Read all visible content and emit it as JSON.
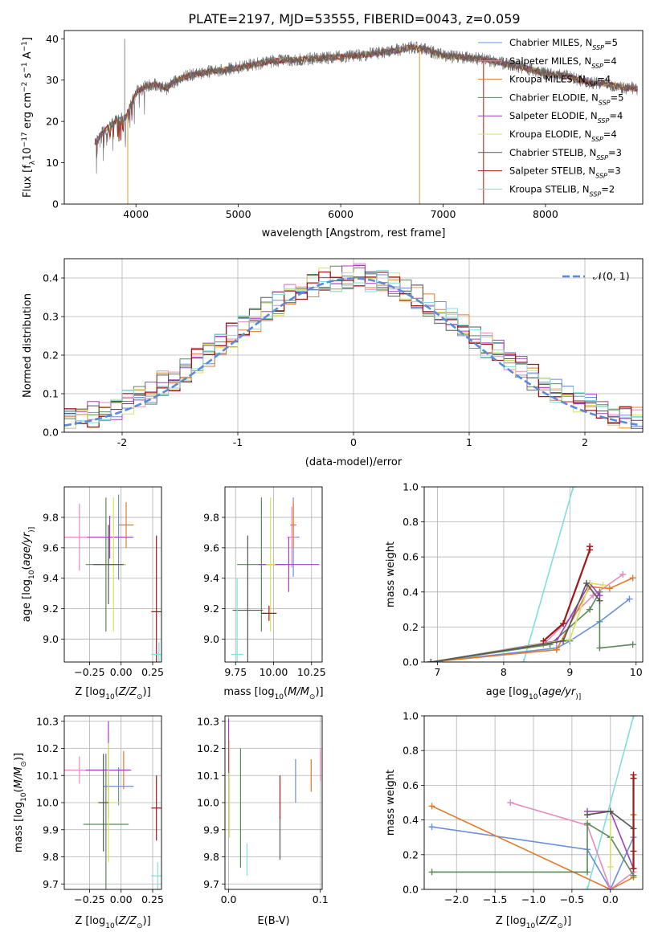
{
  "figure": {
    "title": "PLATE=2197, MJD=53555, FIBERID=0043, z=0.059"
  },
  "colors": {
    "Chabrier MILES": "#6a8fd8",
    "Salpeter MILES": "#e58ac0",
    "Kroupa MILES": "#e07b28",
    "Chabrier ELODIE": "#5a8a5a",
    "Salpeter ELODIE": "#a040c0",
    "Kroupa ELODIE": "#d8e060",
    "Chabrier STELIB": "#555555",
    "Salpeter STELIB": "#a01818",
    "Kroupa STELIB": "#80dede",
    "normal": "#5b8bd8"
  },
  "chart_data": [
    {
      "id": "spectrum",
      "type": "line",
      "xlabel": "wavelength [Angstrom, rest frame]",
      "ylabel": "Flux [f$_\\lambda$10$^{-17}$ erg cm$^{-2}$ s$^{-1}$ A$^{-1}$]",
      "ylabel_parts": [
        "Flux [f",
        "λ",
        "10",
        "−17",
        " erg cm",
        "−2",
        " s",
        "−1",
        " A",
        "−1",
        "]"
      ],
      "xlim": [
        3300,
        8950
      ],
      "ylim": [
        0,
        42
      ],
      "xticks": [
        4000,
        5000,
        6000,
        7000,
        8000
      ],
      "yticks": [
        0,
        10,
        20,
        30,
        40
      ],
      "x_range": [
        3600,
        8900
      ],
      "grid": false,
      "legend_position": "right",
      "legend": [
        {
          "model": "Chabrier MILES",
          "n": "5"
        },
        {
          "model": "Salpeter MILES",
          "n": "4"
        },
        {
          "model": "Kroupa MILES",
          "n": "4"
        },
        {
          "model": "Chabrier ELODIE",
          "n": "5"
        },
        {
          "model": "Salpeter ELODIE",
          "n": "4"
        },
        {
          "model": "Kroupa ELODIE",
          "n": "4"
        },
        {
          "model": "Chabrier STELIB",
          "n": "3"
        },
        {
          "model": "Salpeter STELIB",
          "n": "3"
        },
        {
          "model": "Kroupa STELIB",
          "n": "2"
        }
      ],
      "continuum": {
        "x": [
          3600,
          3700,
          3800,
          3900,
          4000,
          4100,
          4200,
          4300,
          4400,
          4500,
          4700,
          5000,
          5300,
          5600,
          5900,
          6200,
          6500,
          6700,
          6800,
          7000,
          7200,
          7400,
          7600,
          7800,
          8000,
          8200,
          8400,
          8600,
          8800
        ],
        "y": [
          15,
          18,
          20,
          21,
          27,
          28.5,
          29,
          28,
          30,
          31,
          32,
          33,
          34.5,
          35,
          35.5,
          36,
          37,
          38,
          37.5,
          36,
          35.5,
          35,
          34,
          33,
          31.5,
          31,
          29.5,
          29,
          28
        ]
      },
      "spikes": [
        {
          "x": 3890,
          "y": 40
        },
        {
          "x": 3920,
          "y": 0
        },
        {
          "x": 6770,
          "y": 0
        },
        {
          "x": 7395,
          "y": 0
        }
      ]
    },
    {
      "id": "residuals",
      "type": "step",
      "xlabel": "(data-model)/error",
      "ylabel": "Normed distribution",
      "xlim": [
        -2.5,
        2.5
      ],
      "ylim": [
        0,
        0.45
      ],
      "xticks": [
        -2,
        -1,
        0,
        1,
        2
      ],
      "yticks": [
        0.0,
        0.1,
        0.2,
        0.3,
        0.4
      ],
      "grid": true,
      "legend_position": "top-right",
      "legend_label": "𝒩(0, 1)",
      "normal_curve": {
        "mean": 0,
        "sigma": 1
      }
    },
    {
      "id": "age-vs-Z",
      "type": "errorbar",
      "xlabel_parts": [
        "Z [log",
        "10",
        "(",
        "Z/Z",
        "⊙",
        ")]"
      ],
      "ylabel_parts": [
        "age  [log",
        "10",
        "(",
        "age/yr",
        ")]"
      ],
      "xlim": [
        -0.45,
        0.32
      ],
      "ylim": [
        8.85,
        10.0
      ],
      "xticks": [
        -0.25,
        0.0,
        0.25
      ],
      "xticklabels": [
        "−0.25",
        "0.00",
        "0.25"
      ],
      "yticks": [
        9.0,
        9.2,
        9.4,
        9.6,
        9.8
      ],
      "grid": true,
      "points": [
        {
          "model": "Chabrier MILES",
          "x": -0.02,
          "y": 9.67,
          "xerr": 0.12,
          "yerr": 0.28
        },
        {
          "model": "Salpeter MILES",
          "x": -0.33,
          "y": 9.67,
          "xerr": 0.22,
          "yerr": 0.22
        },
        {
          "model": "Kroupa MILES",
          "x": 0.04,
          "y": 9.75,
          "xerr": 0.06,
          "yerr": 0.15
        },
        {
          "model": "Chabrier ELODIE",
          "x": -0.12,
          "y": 9.49,
          "xerr": 0.16,
          "yerr": 0.44
        },
        {
          "model": "Salpeter ELODIE",
          "x": -0.09,
          "y": 9.67,
          "xerr": 0.18,
          "yerr": 0.14
        },
        {
          "model": "Kroupa ELODIE",
          "x": -0.06,
          "y": 9.49,
          "xerr": 0.1,
          "yerr": 0.44
        },
        {
          "model": "Chabrier STELIB",
          "x": -0.1,
          "y": 9.49,
          "xerr": 0.12,
          "yerr": 0.26
        },
        {
          "model": "Salpeter STELIB",
          "x": 0.28,
          "y": 9.18,
          "xerr": 0.04,
          "yerr": 0.5
        },
        {
          "model": "Kroupa STELIB",
          "x": 0.3,
          "y": 8.9,
          "xerr": 0.06,
          "yerr": 0.08
        }
      ]
    },
    {
      "id": "age-vs-mass",
      "type": "errorbar",
      "xlabel_parts": [
        "mass [log",
        "10",
        "(",
        "M/M",
        "⊙",
        ")]"
      ],
      "xlim": [
        9.68,
        10.32
      ],
      "ylim": [
        8.85,
        10.0
      ],
      "xticks": [
        9.75,
        10.0,
        10.25
      ],
      "xticklabels": [
        "9.75",
        "10.00",
        "10.25"
      ],
      "yticks": [
        9.0,
        9.2,
        9.4,
        9.6,
        9.8
      ],
      "grid": true,
      "points": [
        {
          "model": "Chabrier MILES",
          "x": 10.13,
          "y": 9.67,
          "xerr": 0.04,
          "yerr": 0.26
        },
        {
          "model": "Salpeter MILES",
          "x": 10.12,
          "y": 9.67,
          "xerr": 0.03,
          "yerr": 0.2
        },
        {
          "model": "Kroupa MILES",
          "x": 10.13,
          "y": 9.75,
          "xerr": 0.02,
          "yerr": 0.15
        },
        {
          "model": "Chabrier ELODIE",
          "x": 9.92,
          "y": 9.49,
          "xerr": 0.16,
          "yerr": 0.44
        },
        {
          "model": "Salpeter ELODIE",
          "x": 10.1,
          "y": 9.49,
          "xerr": 0.2,
          "yerr": 0.18
        },
        {
          "model": "Kroupa ELODIE",
          "x": 9.98,
          "y": 9.49,
          "xerr": 0.03,
          "yerr": 0.44
        },
        {
          "model": "Chabrier STELIB",
          "x": 9.83,
          "y": 9.19,
          "xerr": 0.1,
          "yerr": 0.49
        },
        {
          "model": "Salpeter STELIB",
          "x": 9.97,
          "y": 9.17,
          "xerr": 0.05,
          "yerr": 0.05
        },
        {
          "model": "Kroupa STELIB",
          "x": 9.76,
          "y": 8.9,
          "xerr": 0.04,
          "yerr": 0.5
        }
      ]
    },
    {
      "id": "weight-vs-age",
      "type": "line",
      "xlabel_parts": [
        "age  [log",
        "10",
        "(",
        "age/yr",
        ")]"
      ],
      "ylabel": "mass weight",
      "xlim": [
        6.8,
        10.1
      ],
      "ylim": [
        0,
        1.0
      ],
      "xticks": [
        7,
        8,
        9,
        10
      ],
      "yticks": [
        0.0,
        0.2,
        0.4,
        0.6,
        0.8,
        1.0
      ],
      "grid": true,
      "series": [
        {
          "model": "Kroupa STELIB",
          "x": [
            8.3,
            9.05
          ],
          "y": [
            0.0,
            1.0
          ]
        },
        {
          "model": "Chabrier MILES",
          "x": [
            6.9,
            8.8,
            9.0,
            9.45,
            9.9
          ],
          "y": [
            0.0,
            0.08,
            0.12,
            0.23,
            0.36
          ]
        },
        {
          "model": "Salpeter MILES",
          "x": [
            6.9,
            8.6,
            9.35,
            9.8
          ],
          "y": [
            0.0,
            0.1,
            0.38,
            0.5
          ]
        },
        {
          "model": "Kroupa MILES",
          "x": [
            6.9,
            8.8,
            9.3,
            9.6,
            9.95
          ],
          "y": [
            0.0,
            0.07,
            0.43,
            0.42,
            0.48
          ]
        },
        {
          "model": "Chabrier ELODIE",
          "x": [
            6.9,
            8.7,
            9.3,
            9.45,
            9.45,
            9.95
          ],
          "y": [
            0.0,
            0.1,
            0.3,
            0.4,
            0.08,
            0.1
          ]
        },
        {
          "model": "Salpeter ELODIE",
          "x": [
            6.9,
            8.8,
            9.3,
            9.45
          ],
          "y": [
            0.0,
            0.12,
            0.45,
            0.38
          ]
        },
        {
          "model": "Kroupa ELODIE",
          "x": [
            6.9,
            9.0,
            9.3,
            9.5
          ],
          "y": [
            0.0,
            0.13,
            0.45,
            0.44
          ]
        },
        {
          "model": "Chabrier STELIB",
          "x": [
            6.9,
            8.9,
            9.25,
            9.45
          ],
          "y": [
            0.0,
            0.12,
            0.45,
            0.35
          ]
        },
        {
          "model": "Salpeter STELIB",
          "x": [
            8.6,
            8.9,
            9.3,
            9.3
          ],
          "y": [
            0.12,
            0.22,
            0.64,
            0.66
          ]
        }
      ]
    },
    {
      "id": "mass-vs-Z",
      "type": "errorbar",
      "xlabel_parts": [
        "Z [log",
        "10",
        "(",
        "Z/Z",
        "⊙",
        ")]"
      ],
      "ylabel_parts": [
        "mass [log",
        "10",
        "(",
        "M/M",
        "⊙",
        ")]"
      ],
      "xlim": [
        -0.45,
        0.32
      ],
      "ylim": [
        9.68,
        10.32
      ],
      "xticks": [
        -0.25,
        0.0,
        0.25
      ],
      "xticklabels": [
        "−0.25",
        "0.00",
        "0.25"
      ],
      "yticks": [
        9.7,
        9.8,
        9.9,
        10.0,
        10.1,
        10.2,
        10.3
      ],
      "grid": true,
      "points": [
        {
          "model": "Chabrier MILES",
          "x": -0.02,
          "y": 10.06,
          "xerr": 0.12,
          "yerr": 0.07
        },
        {
          "model": "Salpeter MILES",
          "x": -0.33,
          "y": 10.12,
          "xerr": 0.22,
          "yerr": 0.05
        },
        {
          "model": "Kroupa MILES",
          "x": 0.02,
          "y": 10.12,
          "xerr": 0.04,
          "yerr": 0.07
        },
        {
          "model": "Chabrier ELODIE",
          "x": -0.12,
          "y": 9.92,
          "xerr": 0.18,
          "yerr": 0.26
        },
        {
          "model": "Salpeter ELODIE",
          "x": -0.1,
          "y": 10.12,
          "xerr": 0.18,
          "yerr": 0.18
        },
        {
          "model": "Kroupa ELODIE",
          "x": -0.1,
          "y": 10.0,
          "xerr": 0.1,
          "yerr": 0.22
        },
        {
          "model": "Chabrier STELIB",
          "x": -0.14,
          "y": 10.0,
          "xerr": 0.04,
          "yerr": 0.18
        },
        {
          "model": "Salpeter STELIB",
          "x": 0.28,
          "y": 9.98,
          "xerr": 0.04,
          "yerr": 0.12
        },
        {
          "model": "Kroupa STELIB",
          "x": 0.29,
          "y": 9.73,
          "xerr": 0.05,
          "yerr": 0.05
        }
      ]
    },
    {
      "id": "mass-vs-EBV",
      "type": "errorbar",
      "xlabel": "E(B-V)",
      "xlim": [
        -0.004,
        0.102
      ],
      "ylim": [
        9.68,
        10.32
      ],
      "xticks": [
        0.0,
        0.1
      ],
      "xticklabels": [
        "0.0",
        "0.1"
      ],
      "yticks": [
        9.7,
        9.8,
        9.9,
        10.0,
        10.1,
        10.2,
        10.3
      ],
      "grid": true,
      "points": [
        {
          "model": "Salpeter ELODIE",
          "x": 0.0,
          "y": 10.21,
          "xerr": 0,
          "yerr": 0.1
        },
        {
          "model": "Kroupa ELODIE",
          "x": 0.001,
          "y": 10.05,
          "xerr": 0,
          "yerr": 0.18
        },
        {
          "model": "Chabrier ELODIE",
          "x": 0.013,
          "y": 9.98,
          "xerr": 0,
          "yerr": 0.22
        },
        {
          "model": "Kroupa STELIB",
          "x": 0.02,
          "y": 9.79,
          "xerr": 0,
          "yerr": 0.06
        },
        {
          "model": "Chabrier STELIB",
          "x": 0.056,
          "y": 9.87,
          "xerr": 0,
          "yerr": 0.08
        },
        {
          "model": "Salpeter STELIB",
          "x": 0.056,
          "y": 10.02,
          "xerr": 0,
          "yerr": 0.08
        },
        {
          "model": "Chabrier MILES",
          "x": 0.073,
          "y": 10.08,
          "xerr": 0,
          "yerr": 0.08
        },
        {
          "model": "Kroupa MILES",
          "x": 0.09,
          "y": 10.1,
          "xerr": 0,
          "yerr": 0.06
        },
        {
          "model": "Salpeter MILES",
          "x": 0.1,
          "y": 10.14,
          "xerr": 0,
          "yerr": 0.06
        }
      ]
    },
    {
      "id": "weight-vs-Z",
      "type": "line",
      "xlabel_parts": [
        "Z [log",
        "10",
        "(",
        "Z/Z",
        "⊙",
        ")]"
      ],
      "ylabel": "mass weight",
      "xlim": [
        -2.42,
        0.42
      ],
      "ylim": [
        0,
        1.0
      ],
      "xticks": [
        -2.0,
        -1.5,
        -1.0,
        -0.5,
        0.0
      ],
      "xticklabels": [
        "−2.0",
        "−1.5",
        "−1.0",
        "−0.5",
        "0.0"
      ],
      "yticks": [
        0.0,
        0.2,
        0.4,
        0.6,
        0.8,
        1.0
      ],
      "grid": true,
      "series": [
        {
          "model": "Kroupa STELIB",
          "x": [
            -0.3,
            0.3
          ],
          "y": [
            0.0,
            1.0
          ]
        },
        {
          "model": "Chabrier MILES",
          "x": [
            -2.32,
            -0.3,
            0.0,
            0.3
          ],
          "y": [
            0.36,
            0.23,
            0.0,
            0.3
          ]
        },
        {
          "model": "Kroupa MILES",
          "x": [
            -2.32,
            0.0,
            0.3,
            0.3
          ],
          "y": [
            0.48,
            0.0,
            0.07,
            0.43
          ]
        },
        {
          "model": "Salpeter MILES",
          "x": [
            -1.3,
            -0.3,
            0.0,
            0.3
          ],
          "y": [
            0.5,
            0.37,
            0.0,
            0.1
          ]
        },
        {
          "model": "Chabrier ELODIE",
          "x": [
            -2.32,
            -0.3,
            -0.3,
            0.0,
            0.3
          ],
          "y": [
            0.1,
            0.1,
            0.38,
            0.3,
            0.08
          ]
        },
        {
          "model": "Salpeter ELODIE",
          "x": [
            -0.3,
            0.0,
            0.3
          ],
          "y": [
            0.45,
            0.45,
            0.12
          ]
        },
        {
          "model": "Kroupa ELODIE",
          "x": [
            -0.3,
            0.0,
            0.0
          ],
          "y": [
            0.43,
            0.45,
            0.13
          ]
        },
        {
          "model": "Chabrier STELIB",
          "x": [
            -0.3,
            0.0,
            0.3
          ],
          "y": [
            0.43,
            0.45,
            0.35
          ]
        },
        {
          "model": "Salpeter STELIB",
          "x": [
            0.3,
            0.3,
            0.3,
            0.3
          ],
          "y": [
            0.12,
            0.22,
            0.64,
            0.66
          ]
        }
      ]
    }
  ]
}
